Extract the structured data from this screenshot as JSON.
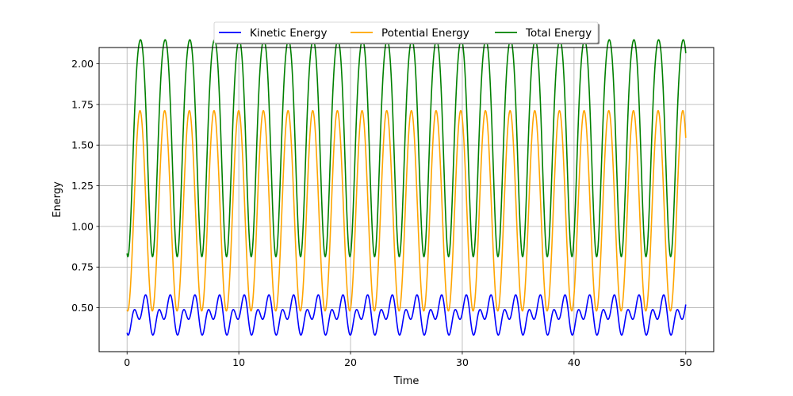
{
  "chart_data": {
    "type": "line",
    "title": "",
    "xlabel": "Time",
    "ylabel": "Energy",
    "xlim": [
      -2.5,
      52.5
    ],
    "ylim": [
      0.23,
      2.1
    ],
    "x_ticks": [
      0,
      10,
      20,
      30,
      40,
      50
    ],
    "y_ticks": [
      0.5,
      0.75,
      1.0,
      1.25,
      1.5,
      1.75,
      2.0
    ],
    "x_tick_labels": [
      "0",
      "10",
      "20",
      "30",
      "40",
      "50"
    ],
    "y_tick_labels": [
      "0.50",
      "0.75",
      "1.00",
      "1.25",
      "1.50",
      "1.75",
      "2.00"
    ],
    "grid": true,
    "legend_position": "top-center",
    "x_range": [
      0,
      50
    ],
    "series": [
      {
        "name": "Kinetic Energy",
        "color": "#0000ff",
        "description": "oscillates between ~0.34 and ~0.535 with a small secondary dip near 0.43; period ~2.2; starts at 0.49, ends near 0.39",
        "min": 0.34,
        "max": 0.535,
        "start": 0.49,
        "end": 0.39
      },
      {
        "name": "Potential Energy",
        "color": "#ffa500",
        "description": "oscillates between ~0.48 and ~1.715; period ~2.2; starts at 0.49, ends near 1.58",
        "min": 0.48,
        "max": 1.715,
        "start": 0.49,
        "end": 1.58
      },
      {
        "name": "Total Energy",
        "color": "#008000",
        "description": "oscillates between ~0.98 and ~2.05; period ~2.2; starts at 0.98, ends near 1.98",
        "min": 0.98,
        "max": 2.05,
        "start": 0.98,
        "end": 1.98
      }
    ]
  }
}
